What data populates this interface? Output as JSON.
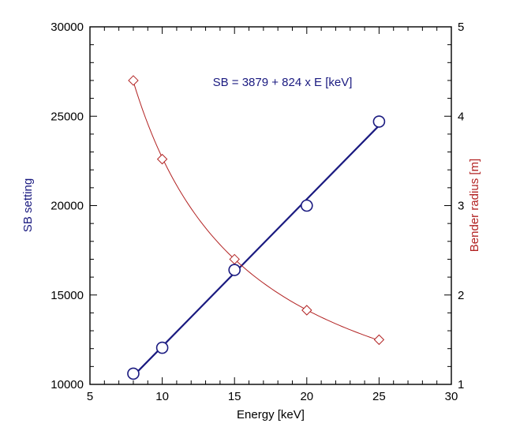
{
  "chart_data": {
    "type": "scatter",
    "title": "",
    "xlabel": "Energy [keV]",
    "ylabel": "SB setting",
    "y2label": "Bender radius [m]",
    "xlim": [
      5,
      30
    ],
    "ylim": [
      10000,
      30000
    ],
    "y2lim": [
      1,
      5
    ],
    "xticks": [
      5,
      10,
      15,
      20,
      25,
      30
    ],
    "yticks": [
      10000,
      15000,
      20000,
      25000,
      30000
    ],
    "y2ticks": [
      1,
      2,
      3,
      4,
      5
    ],
    "grid": false,
    "annotation": "SB = 3879 + 824 x E [keV]",
    "fit": {
      "intercept": 3879,
      "slope": 824
    },
    "colors": {
      "sb": "#1a1a80",
      "radius": "#b22222"
    },
    "series": [
      {
        "axis": "left",
        "marker": "circle",
        "x": [
          8,
          10,
          15,
          20,
          25
        ],
        "y": [
          10600,
          12050,
          16400,
          20000,
          24700
        ]
      },
      {
        "axis": "right",
        "marker": "diamond",
        "x": [
          8,
          10,
          15,
          20,
          25
        ],
        "y": [
          4.4,
          3.52,
          2.4,
          1.83,
          1.5
        ]
      }
    ]
  }
}
